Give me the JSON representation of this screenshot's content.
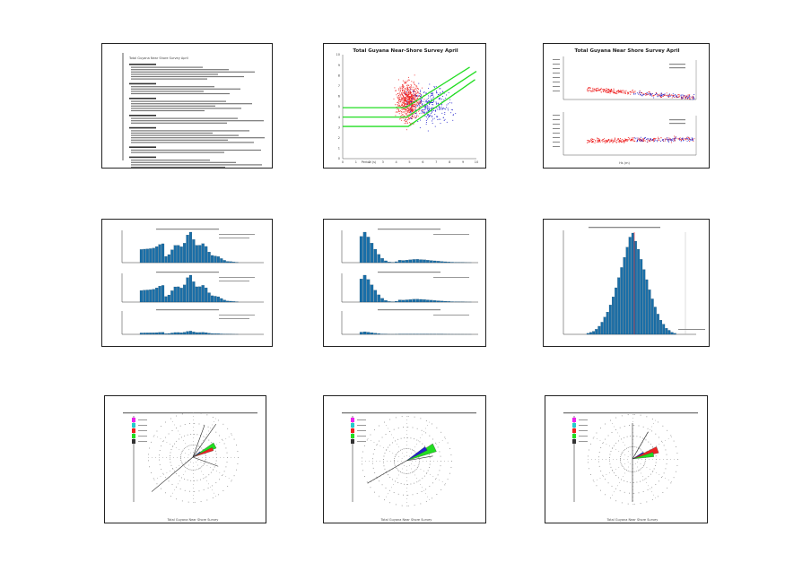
{
  "page": {
    "background": "#ffffff"
  },
  "panels": {
    "p1": {
      "kind": "document",
      "title": "Total Guyana Near Shore Survey April"
    },
    "p2": {
      "kind": "scatter",
      "title": "Total Guyana Near-Shore Survey April",
      "xlabel": "Period (s)"
    },
    "p3": {
      "kind": "scatter-stack",
      "title": "Total Guyana Near Shore Survey April",
      "xlabel": "Hs (m)"
    },
    "p4": {
      "kind": "histogram-stack"
    },
    "p5": {
      "kind": "histogram-stack"
    },
    "p6": {
      "kind": "histogram"
    },
    "p7": {
      "kind": "rose",
      "caption": "Total Guyana Near Shore Survey"
    },
    "p8": {
      "kind": "rose",
      "caption": "Total Guyana Near Shore Survey"
    },
    "p9": {
      "kind": "rose",
      "caption": "Total Guyana Near Shore Survey"
    }
  },
  "colors": {
    "red": "#ee2222",
    "blue": "#2222cc",
    "green": "#22dd22",
    "bar": "#1a6fa8",
    "magenta": "#ee22ee",
    "cyan": "#22cccc"
  },
  "chart_data": [
    {
      "type": "scatter",
      "title": "Total Guyana Near-Shore Survey April",
      "xlabel": "Period (s)",
      "ylabel": "",
      "xlim": [
        0,
        10
      ],
      "ylim": [
        0,
        10
      ],
      "xticks": [
        "0",
        "1",
        "2",
        "3",
        "4",
        "5",
        "6",
        "7",
        "8",
        "9",
        "10"
      ],
      "yticks": [
        "0",
        "1",
        "2",
        "3",
        "4",
        "5",
        "6",
        "7",
        "8",
        "9",
        "10"
      ],
      "grid": false,
      "series": [
        {
          "color": "#ee2222",
          "cluster": {
            "x_center": 4.9,
            "x_spread": 0.8,
            "y_center": 5.5,
            "y_spread": 1.8,
            "n": 700
          }
        },
        {
          "color": "#2222cc",
          "cluster": {
            "x_center": 6.5,
            "x_spread": 1.6,
            "y_center": 5.2,
            "y_spread": 1.8,
            "n": 300
          }
        }
      ],
      "fit_lines": [
        {
          "color": "#22dd22",
          "points": [
            [
              0,
              4.9
            ],
            [
              4.7,
              4.9
            ],
            [
              9.5,
              8.8
            ]
          ]
        },
        {
          "color": "#22dd22",
          "points": [
            [
              0,
              4.0
            ],
            [
              4.8,
              4.0
            ],
            [
              10,
              8.4
            ]
          ]
        },
        {
          "color": "#22dd22",
          "points": [
            [
              0,
              3.1
            ],
            [
              4.9,
              3.1
            ],
            [
              9.9,
              7.6
            ]
          ]
        }
      ]
    },
    {
      "type": "histogram",
      "title": "",
      "values": [
        1,
        2,
        3,
        5,
        8,
        12,
        17,
        22,
        29,
        37,
        46,
        56,
        66,
        76,
        86,
        96,
        100,
        92,
        84,
        74,
        64,
        54,
        44,
        35,
        27,
        20,
        14,
        10,
        6,
        4,
        2,
        1
      ]
    }
  ]
}
